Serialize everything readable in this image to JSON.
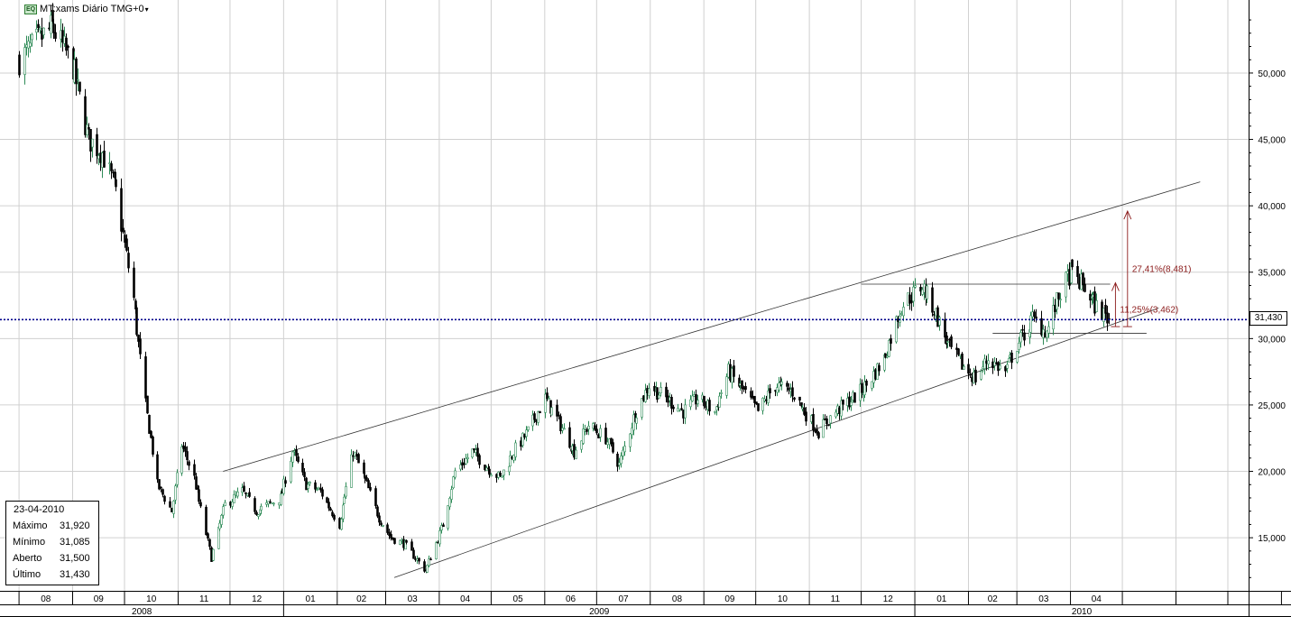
{
  "header": {
    "badge": "EQ",
    "title": "MT:xams Diário TMG+0",
    "dropdown_icon": "caret-down-icon"
  },
  "info_box": {
    "date": "23-04-2010",
    "rows": [
      {
        "label": "Máximo",
        "value": "31,920"
      },
      {
        "label": "Mínimo",
        "value": "31,085"
      },
      {
        "label": "Aberto",
        "value": "31,500"
      },
      {
        "label": "Último",
        "value": "31,430"
      }
    ]
  },
  "last_price_label": "31,430",
  "annotations": {
    "upper_pct": "27,41%(8,481)",
    "lower_pct": "11,25%(3,462)"
  },
  "colors": {
    "up_candle": "#2e8b57",
    "down_candle": "#000000",
    "last_price_line": "#00008b",
    "annotation": "#8b1a1a",
    "grid": "#d0d0d0"
  },
  "chart_data": {
    "type": "candlestick",
    "ylim": [
      11000,
      55500
    ],
    "y_ticks": [
      15000,
      20000,
      25000,
      30000,
      35000,
      40000,
      45000,
      50000
    ],
    "y_tick_labels": [
      "15,000",
      "20,000",
      "25,000",
      "30,000",
      "35,000",
      "40,000",
      "45,000",
      "50,000"
    ],
    "x_months": [
      "08",
      "09",
      "10",
      "11",
      "12",
      "01",
      "02",
      "03",
      "04",
      "05",
      "06",
      "07",
      "08",
      "09",
      "10",
      "11",
      "12",
      "01",
      "02",
      "03",
      "04"
    ],
    "x_years": [
      "2008",
      "2009",
      "2010"
    ],
    "close_path": [
      [
        "2008-08-01",
        51000
      ],
      [
        "2008-08-20",
        53500
      ],
      [
        "2008-09-01",
        50500
      ],
      [
        "2008-09-10",
        45000
      ],
      [
        "2008-09-18",
        44000
      ],
      [
        "2008-09-26",
        41000
      ],
      [
        "2008-10-06",
        33000
      ],
      [
        "2008-10-13",
        25000
      ],
      [
        "2008-10-20",
        19000
      ],
      [
        "2008-10-28",
        17000
      ],
      [
        "2008-11-03",
        22000
      ],
      [
        "2008-11-10",
        19500
      ],
      [
        "2008-11-20",
        13500
      ],
      [
        "2008-11-28",
        17500
      ],
      [
        "2008-12-08",
        18500
      ],
      [
        "2008-12-16",
        17000
      ],
      [
        "2008-12-30",
        18000
      ],
      [
        "2009-01-06",
        21500
      ],
      [
        "2009-01-14",
        19000
      ],
      [
        "2009-01-22",
        18500
      ],
      [
        "2009-02-02",
        16000
      ],
      [
        "2009-02-10",
        21500
      ],
      [
        "2009-02-18",
        19000
      ],
      [
        "2009-02-25",
        16500
      ],
      [
        "2009-03-04",
        15000
      ],
      [
        "2009-03-12",
        14500
      ],
      [
        "2009-03-24",
        12500
      ],
      [
        "2009-04-03",
        16000
      ],
      [
        "2009-04-10",
        20000
      ],
      [
        "2009-04-20",
        21500
      ],
      [
        "2009-04-27",
        20500
      ],
      [
        "2009-05-06",
        19500
      ],
      [
        "2009-05-14",
        21500
      ],
      [
        "2009-05-22",
        23000
      ],
      [
        "2009-06-01",
        25500
      ],
      [
        "2009-06-10",
        23500
      ],
      [
        "2009-06-18",
        21500
      ],
      [
        "2009-06-26",
        23500
      ],
      [
        "2009-07-06",
        22500
      ],
      [
        "2009-07-14",
        20500
      ],
      [
        "2009-07-22",
        24000
      ],
      [
        "2009-07-31",
        26500
      ],
      [
        "2009-08-10",
        25500
      ],
      [
        "2009-08-20",
        24500
      ],
      [
        "2009-08-28",
        25500
      ],
      [
        "2009-09-07",
        24500
      ],
      [
        "2009-09-15",
        27500
      ],
      [
        "2009-09-24",
        26000
      ],
      [
        "2009-10-02",
        24500
      ],
      [
        "2009-10-12",
        26500
      ],
      [
        "2009-10-22",
        26000
      ],
      [
        "2009-10-29",
        24500
      ],
      [
        "2009-11-06",
        23000
      ],
      [
        "2009-11-16",
        24500
      ],
      [
        "2009-11-26",
        25500
      ],
      [
        "2009-12-04",
        26500
      ],
      [
        "2009-12-14",
        28500
      ],
      [
        "2009-12-24",
        32500
      ],
      [
        "2010-01-05",
        34000
      ],
      [
        "2010-01-11",
        32500
      ],
      [
        "2010-01-20",
        29500
      ],
      [
        "2010-01-28",
        28000
      ],
      [
        "2010-02-05",
        27000
      ],
      [
        "2010-02-12",
        28500
      ],
      [
        "2010-02-22",
        27500
      ],
      [
        "2010-03-01",
        29500
      ],
      [
        "2010-03-10",
        31500
      ],
      [
        "2010-03-18",
        30500
      ],
      [
        "2010-03-26",
        33500
      ],
      [
        "2010-04-01",
        35000
      ],
      [
        "2010-04-08",
        34000
      ],
      [
        "2010-04-15",
        32500
      ],
      [
        "2010-04-23",
        31430
      ]
    ],
    "last_bar": {
      "date": "2010-04-23",
      "open": 31500,
      "high": 31920,
      "low": 31085,
      "close": 31430
    },
    "trend_lines": [
      {
        "from": [
          "2008-11-27",
          20000
        ],
        "to": [
          "2010-06-15",
          41800
        ]
      },
      {
        "from": [
          "2009-03-06",
          12000
        ],
        "to": [
          "2010-05-22",
          32300
        ]
      }
    ],
    "horizontal_lines": [
      {
        "from": "2009-12-01",
        "to": "2010-04-24",
        "y": 34100
      },
      {
        "from": "2010-02-15",
        "to": "2010-05-15",
        "y": 30400
      }
    ],
    "measure_arrows": [
      {
        "date": "2010-05-04",
        "from": 30900,
        "to": 39600,
        "label": "27,41%(8,481)"
      },
      {
        "date": "2010-04-27",
        "from": 30900,
        "to": 34200,
        "label": "11,25%(3,462)"
      }
    ]
  }
}
